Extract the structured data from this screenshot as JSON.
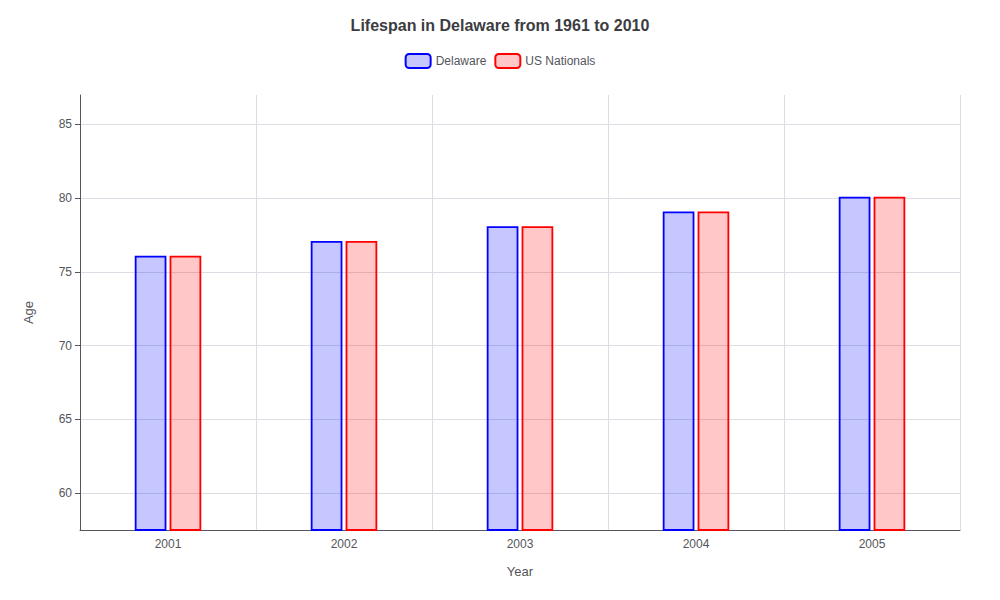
{
  "chart_data": {
    "type": "bar",
    "title": "Lifespan in Delaware from 1961 to 2010",
    "xlabel": "Year",
    "ylabel": "Age",
    "categories": [
      "2001",
      "2002",
      "2003",
      "2004",
      "2005"
    ],
    "series": [
      {
        "name": "Delaware",
        "color": "#0000ff",
        "values": [
          76.1,
          77.1,
          78.1,
          79.1,
          80.1
        ]
      },
      {
        "name": "US Nationals",
        "color": "#ff0000",
        "values": [
          76.1,
          77.1,
          78.1,
          79.1,
          80.1
        ]
      }
    ],
    "ylim": [
      57.5,
      87
    ],
    "yticks": [
      60,
      65,
      70,
      75,
      80,
      85
    ],
    "grid": true,
    "legend": "top"
  }
}
